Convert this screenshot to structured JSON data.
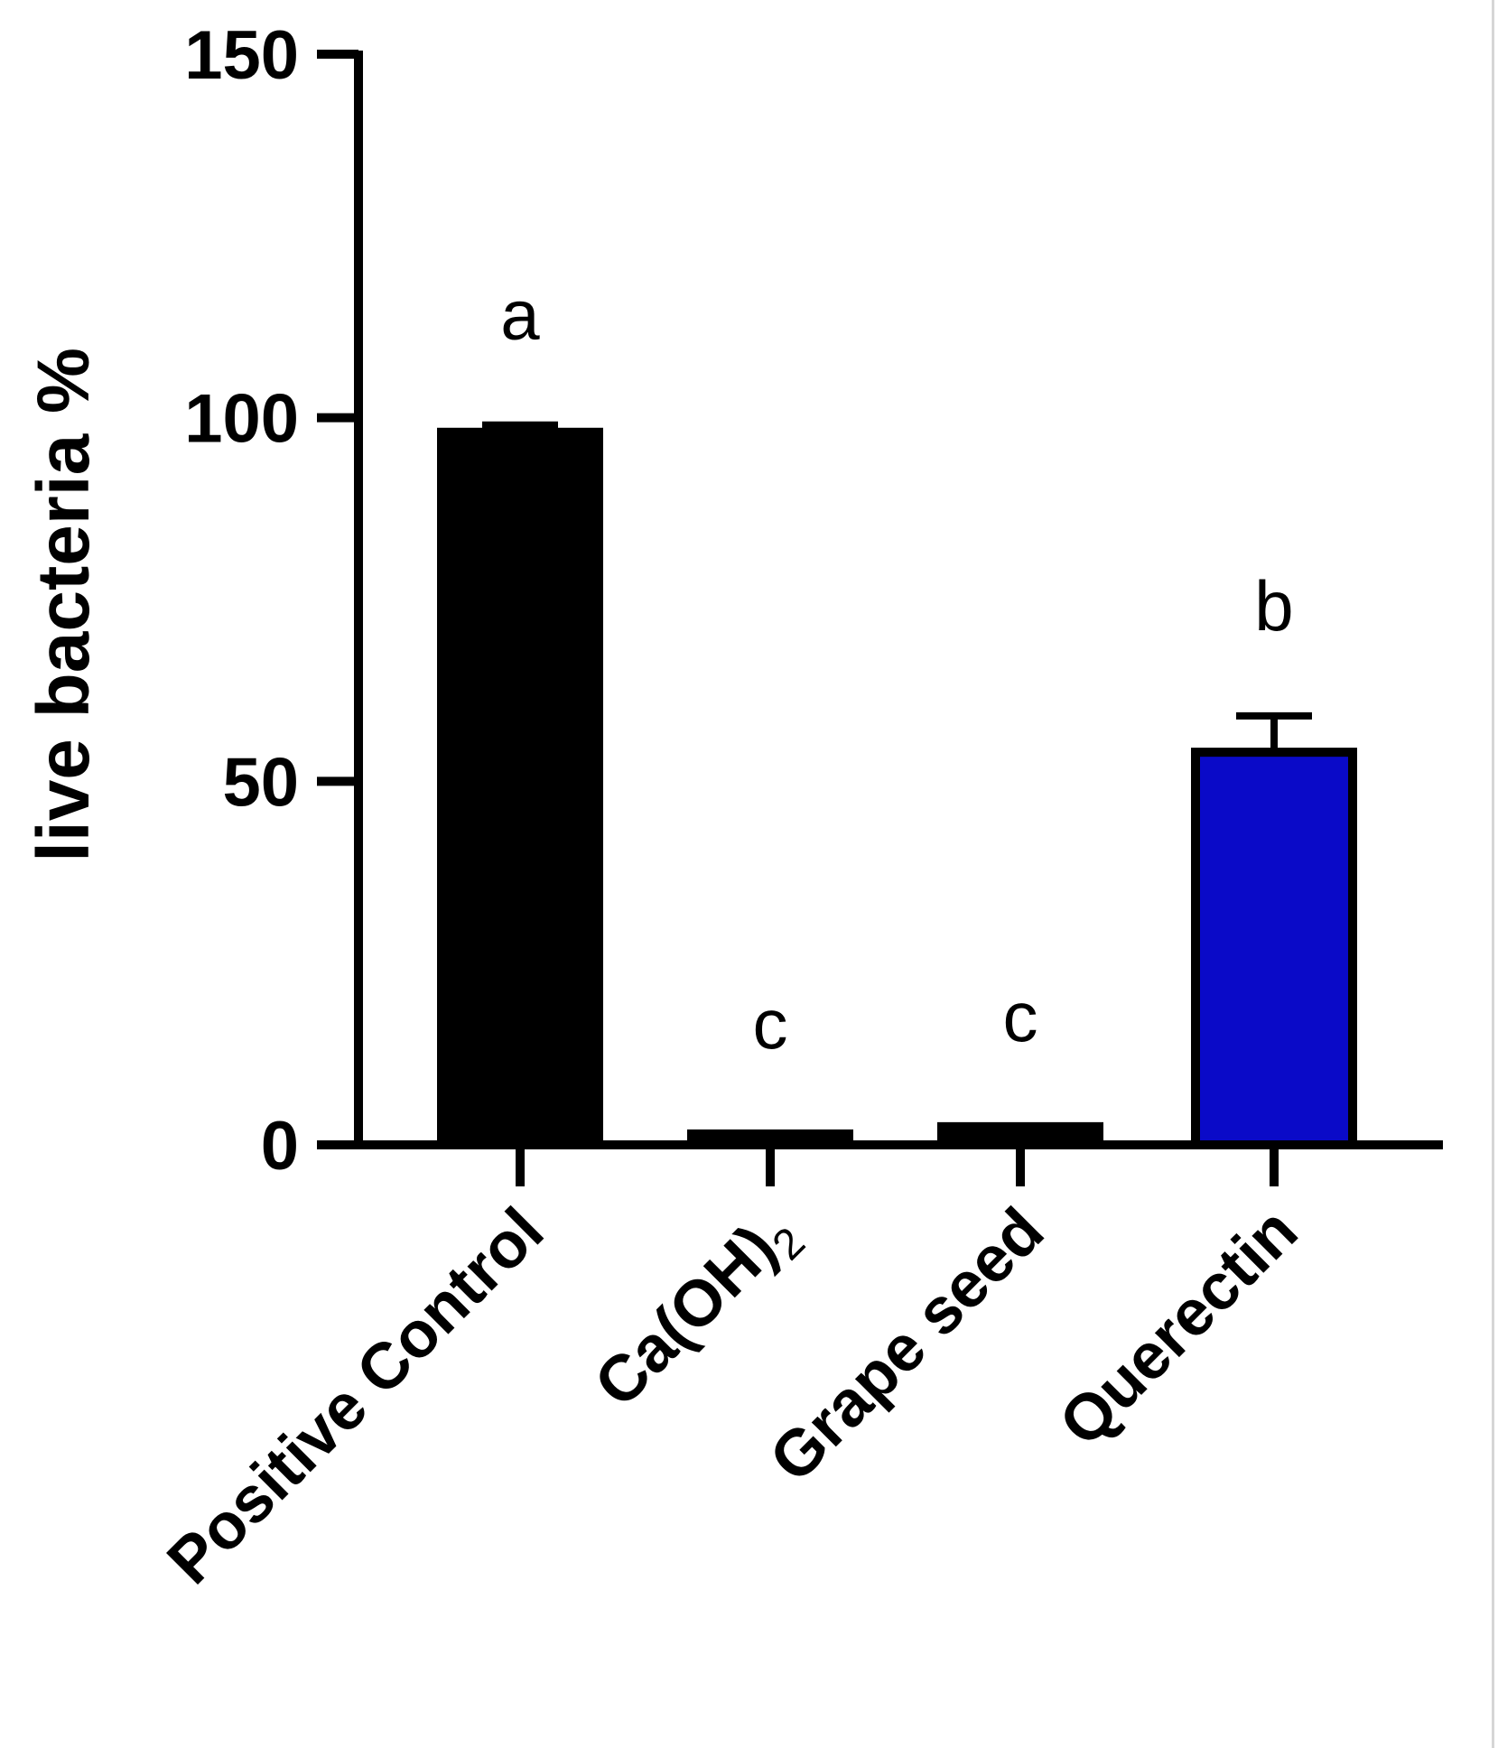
{
  "chart_data": {
    "type": "bar",
    "categories": [
      "Positive Control",
      "Ca(OH)2",
      "Grape seed",
      "Querectin"
    ],
    "category_display": [
      {
        "main": "Positive Control",
        "sub": ""
      },
      {
        "main": "Ca(OH)",
        "sub": "2"
      },
      {
        "main": "Grape seed",
        "sub": ""
      },
      {
        "main": "Querectin",
        "sub": ""
      }
    ],
    "values": [
      98,
      1.5,
      2.5,
      54
    ],
    "error_upper": [
      99,
      1.5,
      2.5,
      59
    ],
    "significance_labels": [
      "a",
      "c",
      "c",
      "b"
    ],
    "bar_fill_colors": [
      "#000000",
      "#000000",
      "#000000",
      "#0a0ac8"
    ],
    "bar_edge_color": "#000000",
    "title": "",
    "xlabel": "",
    "ylabel": "live bacteria %",
    "ylim": [
      0,
      150
    ],
    "yticks": [
      0,
      50,
      100,
      150
    ],
    "ytick_labels": [
      "0",
      "50",
      "100",
      "150"
    ],
    "grid": false,
    "legend": "none"
  }
}
